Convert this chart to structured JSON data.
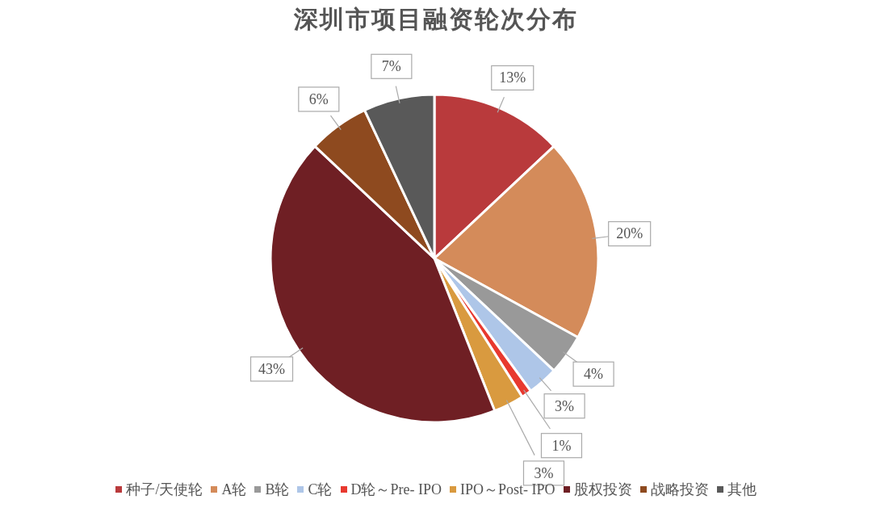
{
  "chart_data": {
    "type": "pie",
    "title": "深圳市项目融资轮次分布",
    "categories": [
      "种子/天使轮",
      "A轮",
      "B轮",
      "C轮",
      "D轮～Pre- IPO",
      "IPO～Post- IPO",
      "股权投资",
      "战略投资",
      "其他"
    ],
    "values": [
      13,
      20,
      4,
      3,
      1,
      3,
      43,
      6,
      7
    ],
    "colors": [
      "#b93a3c",
      "#d48b5a",
      "#999999",
      "#aec6e8",
      "#e8392f",
      "#d99a3f",
      "#6f1f24",
      "#8e4a1f",
      "#595959"
    ],
    "value_labels": [
      "13%",
      "20%",
      "4%",
      "3%",
      "1%",
      "3%",
      "43%",
      "6%",
      "7%"
    ],
    "legend": "bottom"
  }
}
